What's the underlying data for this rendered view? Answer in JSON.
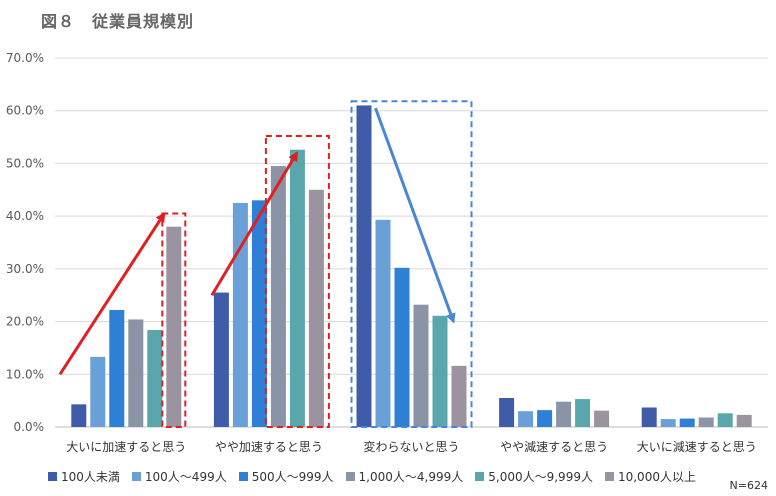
{
  "figure_title": "図８　従業員規模別",
  "note": "N=624",
  "chart_data": {
    "type": "bar",
    "categories": [
      "大いに加速すると思う",
      "やや加速すると思う",
      "変わらないと思う",
      "やや減速すると思う",
      "大いに減速すると思う"
    ],
    "series": [
      {
        "name": "100人未満",
        "color": "#3e5ca8",
        "values": [
          4.3,
          25.5,
          61.0,
          5.5,
          3.7
        ]
      },
      {
        "name": "100人～499人",
        "color": "#6aa0d8",
        "values": [
          13.3,
          42.5,
          39.3,
          3.0,
          1.5
        ]
      },
      {
        "name": "500人～999人",
        "color": "#2e7fd6",
        "values": [
          22.2,
          43.0,
          30.2,
          3.2,
          1.6
        ]
      },
      {
        "name": "1,000人～4,999人",
        "color": "#8a94a6",
        "values": [
          20.4,
          49.5,
          23.2,
          4.8,
          1.8
        ]
      },
      {
        "name": "5,000人～9,999人",
        "color": "#5aa6ad",
        "values": [
          18.4,
          52.6,
          21.1,
          5.3,
          2.6
        ]
      },
      {
        "name": "10,000人以上",
        "color": "#9c93a0",
        "values": [
          38.0,
          45.0,
          11.6,
          3.1,
          2.3
        ]
      }
    ],
    "ylim": [
      0,
      70
    ],
    "yticks": [
      "0.0%",
      "10.0%",
      "20.0%",
      "30.0%",
      "40.0%",
      "50.0%",
      "60.0%",
      "70.0%"
    ],
    "grid": true,
    "legend_position": "bottom",
    "annotation_colors": {
      "increase": "#e02020",
      "decrease": "#4a86d8"
    }
  }
}
